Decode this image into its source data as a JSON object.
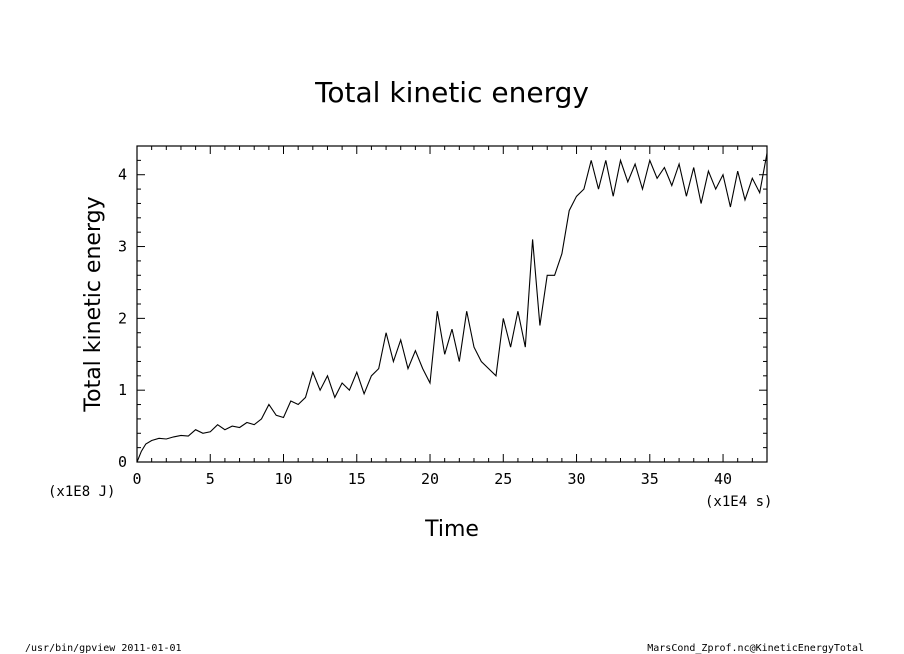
{
  "chart_data": {
    "type": "line",
    "title": "Total kinetic energy",
    "xlabel": "Time",
    "ylabel": "Total kinetic energy",
    "x_unit_label": "(x1E4 s)",
    "y_unit_label": "(x1E8 J)",
    "xlim": [
      0,
      43
    ],
    "ylim": [
      0,
      4.4
    ],
    "x_ticks": [
      0,
      5,
      10,
      15,
      20,
      25,
      30,
      35,
      40
    ],
    "y_ticks": [
      0,
      1,
      2,
      3,
      4
    ],
    "grid": false,
    "series": [
      {
        "x": [
          0,
          0.3,
          0.6,
          1.0,
          1.5,
          2.0,
          2.5,
          3.0,
          3.5,
          4.0,
          4.5,
          5.0,
          5.5,
          6.0,
          6.5,
          7.0,
          7.5,
          8.0,
          8.5,
          9.0,
          9.5,
          10.0,
          10.5,
          11.0,
          11.5,
          12.0,
          12.5,
          13.0,
          13.5,
          14.0,
          14.5,
          15.0,
          15.5,
          16.0,
          16.5,
          17.0,
          17.5,
          18.0,
          18.5,
          19.0,
          19.5,
          20.0,
          20.5,
          21.0,
          21.5,
          22.0,
          22.5,
          23.0,
          23.5,
          24.0,
          24.5,
          25.0,
          25.5,
          26.0,
          26.5,
          27.0,
          27.5,
          28.0,
          28.5,
          29.0,
          29.5,
          30.0,
          30.5,
          31.0,
          31.5,
          32.0,
          32.5,
          33.0,
          33.5,
          34.0,
          34.5,
          35.0,
          35.5,
          36.0,
          36.5,
          37.0,
          37.5,
          38.0,
          38.5,
          39.0,
          39.5,
          40.0,
          40.5,
          41.0,
          41.5,
          42.0,
          42.5,
          43.0
        ],
        "values": [
          0,
          0.15,
          0.25,
          0.3,
          0.33,
          0.32,
          0.35,
          0.37,
          0.36,
          0.45,
          0.4,
          0.42,
          0.52,
          0.45,
          0.5,
          0.48,
          0.55,
          0.52,
          0.6,
          0.8,
          0.65,
          0.62,
          0.85,
          0.8,
          0.9,
          1.25,
          1.0,
          1.2,
          0.9,
          1.1,
          1.0,
          1.25,
          0.95,
          1.2,
          1.3,
          1.8,
          1.4,
          1.7,
          1.3,
          1.55,
          1.3,
          1.1,
          2.1,
          1.5,
          1.85,
          1.4,
          2.1,
          1.6,
          1.4,
          1.3,
          1.2,
          2.0,
          1.6,
          2.1,
          1.6,
          3.1,
          1.9,
          2.6,
          2.6,
          2.9,
          3.5,
          3.7,
          3.8,
          4.2,
          3.8,
          4.2,
          3.7,
          4.2,
          3.9,
          4.15,
          3.8,
          4.2,
          3.95,
          4.1,
          3.85,
          4.15,
          3.7,
          4.1,
          3.6,
          4.05,
          3.8,
          4.0,
          3.55,
          4.05,
          3.65,
          3.95,
          3.75,
          4.3
        ]
      }
    ]
  },
  "footer": {
    "left": "/usr/bin/gpview   2011-01-01",
    "right": "MarsCond_Zprof.nc@KineticEnergyTotal"
  }
}
